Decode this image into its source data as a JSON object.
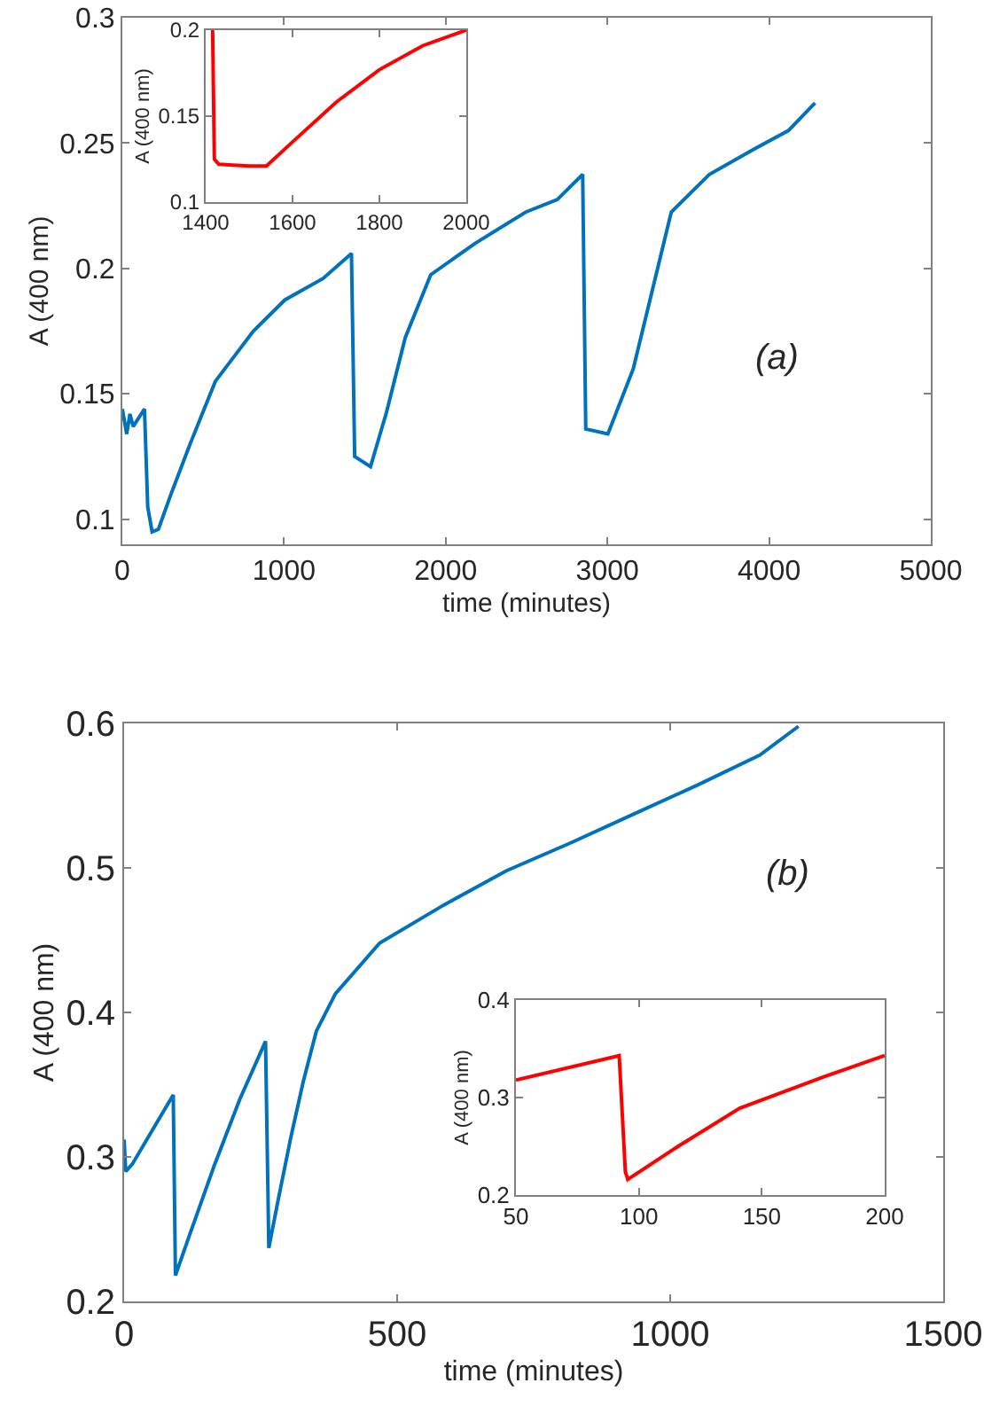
{
  "chart_data": [
    {
      "type": "line",
      "xlabel": "time (minutes)",
      "ylabel": "A (400 nm)",
      "annotations": [
        "(a)"
      ],
      "xlim": [
        0,
        5000
      ],
      "xticks": [
        0,
        1000,
        2000,
        3000,
        4000,
        5000
      ],
      "ylim": [
        0.09,
        0.3
      ],
      "yticks": [
        0.1,
        0.15,
        0.2,
        0.25,
        0.3
      ],
      "grid": false,
      "series": [
        {
          "color": "#0072bd",
          "x": [
            0,
            27,
            47,
            67,
            137,
            157,
            184,
            223,
            301,
            419,
            575,
            810,
            1006,
            1241,
            1417,
            1437,
            1535,
            1633,
            1750,
            1907,
            2181,
            2495,
            2690,
            2847,
            2866,
            3003,
            3160,
            3395,
            3630,
            3904,
            4119,
            4284
          ],
          "values": [
            0.144,
            0.134,
            0.142,
            0.137,
            0.144,
            0.105,
            0.095,
            0.096,
            0.11,
            0.13,
            0.155,
            0.175,
            0.1875,
            0.196,
            0.206,
            0.125,
            0.121,
            0.1425,
            0.1725,
            0.1975,
            0.21,
            0.2225,
            0.2275,
            0.2375,
            0.136,
            0.134,
            0.16,
            0.2225,
            0.2375,
            0.2475,
            0.255,
            0.266
          ]
        }
      ]
    },
    {
      "type": "line",
      "ylabel": "A (400 nm)",
      "xlim": [
        1400,
        2000
      ],
      "xticks": [
        1400,
        1600,
        1800,
        2000
      ],
      "ylim": [
        0.1,
        0.2
      ],
      "yticks": [
        0.1,
        0.15,
        0.2
      ],
      "grid": false,
      "series": [
        {
          "color": "#ff0000",
          "x": [
            1416,
            1420,
            1430,
            1500,
            1540,
            1600,
            1700,
            1800,
            1900,
            2000
          ],
          "values": [
            0.2,
            0.125,
            0.122,
            0.121,
            0.121,
            0.135,
            0.158,
            0.177,
            0.191,
            0.2
          ]
        }
      ]
    },
    {
      "type": "line",
      "xlabel": "time (minutes)",
      "ylabel": "A (400 nm)",
      "annotations": [
        "(b)"
      ],
      "xlim": [
        0,
        1500
      ],
      "xticks": [
        0,
        500,
        1000,
        1500
      ],
      "ylim": [
        0.2,
        0.6
      ],
      "yticks": [
        0.2,
        0.3,
        0.4,
        0.5,
        0.6
      ],
      "grid": false,
      "series": [
        {
          "color": "#0072bd",
          "x": [
            0,
            3,
            15,
            90,
            94,
            119,
            166,
            212,
            259,
            265,
            282,
            305,
            328,
            352,
            387,
            468,
            584,
            700,
            816,
            932,
            1048,
            1164,
            1235
          ],
          "values": [
            0.312,
            0.29,
            0.295,
            0.343,
            0.218,
            0.245,
            0.295,
            0.34,
            0.38,
            0.237,
            0.27,
            0.313,
            0.352,
            0.387,
            0.413,
            0.448,
            0.474,
            0.498,
            0.517,
            0.537,
            0.557,
            0.578,
            0.598
          ]
        }
      ]
    },
    {
      "type": "line",
      "ylabel": "A (400 nm)",
      "xlim": [
        50,
        200
      ],
      "xticks": [
        50,
        100,
        150,
        200
      ],
      "ylim": [
        0.2,
        0.4
      ],
      "yticks": [
        0.2,
        0.3,
        0.4
      ],
      "grid": false,
      "series": [
        {
          "color": "#ff0000",
          "x": [
            50,
            92,
            94.5,
            95.5,
            116,
            141,
            175,
            200
          ],
          "values": [
            0.318,
            0.343,
            0.224,
            0.216,
            0.25,
            0.289,
            0.321,
            0.343
          ]
        }
      ]
    }
  ]
}
